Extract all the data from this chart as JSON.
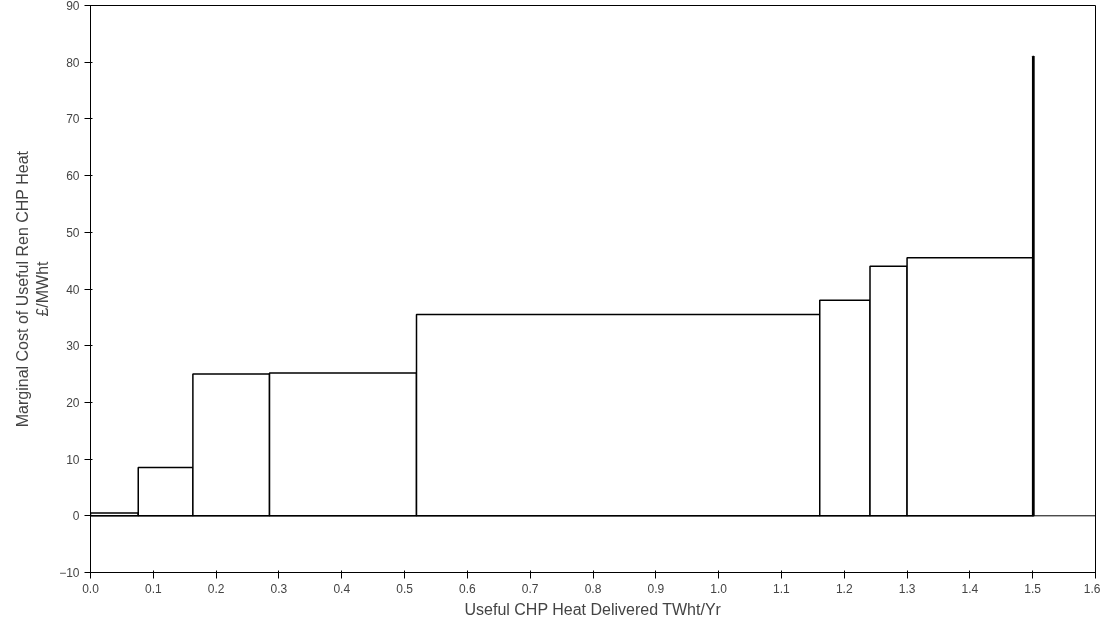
{
  "chart_data": {
    "type": "histogram",
    "xlabel": "Useful CHP Heat Delivered TWht/Yr",
    "ylabel": "Marginal Cost of Useful Ren CHP Heat\n£/MWht",
    "bins": [
      0,
      0.076,
      0.163,
      0.285,
      0.519,
      1.161,
      1.241,
      1.3,
      1.5,
      1.502
    ],
    "values": [
      0.5,
      8.5,
      25,
      25.2,
      35.5,
      38,
      44,
      45.5,
      81
    ],
    "color": "#ffffff",
    "xlim": [
      0,
      1.6
    ],
    "ylim": [
      -10,
      90
    ],
    "xticks": [
      {
        "value": 0,
        "label": "0.0"
      },
      0.1,
      0.2,
      0.3,
      0.4,
      0.5,
      0.6,
      0.7,
      0.8,
      0.9,
      {
        "value": 1,
        "label": "1.0"
      },
      1.1,
      1.2,
      1.3,
      1.4,
      1.5,
      1.6
    ],
    "yticks": [
      -10,
      0,
      10,
      20,
      30,
      40,
      50,
      60,
      70,
      80,
      90
    ],
    "ref_lines": [
      {
        "axis": "y",
        "value": 0,
        "color": "#000000"
      }
    ],
    "grid": false
  }
}
